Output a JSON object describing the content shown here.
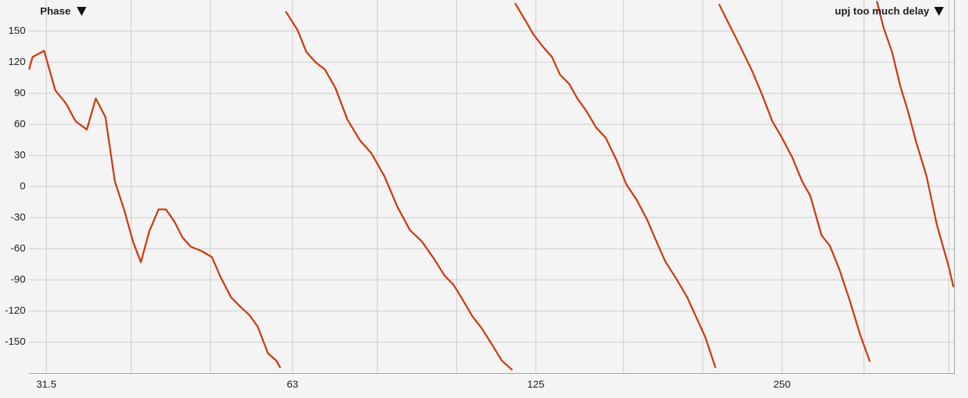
{
  "chart_data": {
    "type": "line",
    "title": "Phase",
    "xscale": "log",
    "grid": true,
    "xlim": [
      30,
      406
    ],
    "ylim": [
      -180,
      180
    ],
    "xticks": [
      31.5,
      63,
      125,
      250
    ],
    "xminor": [
      40,
      50,
      80,
      100,
      160,
      200,
      315,
      400
    ],
    "yticks": [
      150,
      120,
      90,
      60,
      30,
      0,
      -30,
      -60,
      -90,
      -120,
      -150
    ],
    "x": [
      30.0,
      30.3,
      31.3,
      32.3,
      33.3,
      34.2,
      35.3,
      36.2,
      37.2,
      38.2,
      39.2,
      40.2,
      41.1,
      42.1,
      43.2,
      44.1,
      45.2,
      46.2,
      47.3,
      48.7,
      50.2,
      51.5,
      53.0,
      54.4,
      55.8,
      57.1,
      58.8,
      60.2,
      60.9,
      null,
      61.8,
      63.9,
      65.5,
      67.2,
      69.0,
      71.1,
      73.5,
      76.1,
      78.7,
      81.6,
      84.7,
      87.7,
      90.7,
      93.9,
      96.7,
      99.2,
      101.7,
      104.5,
      107.4,
      110.6,
      113.6,
      117.0,
      null,
      117.9,
      121.4,
      124.1,
      127.5,
      130.8,
      133.8,
      137.3,
      140.5,
      144.1,
      148.1,
      152.2,
      157.0,
      161.3,
      166.1,
      171.0,
      175.8,
      179.9,
      186.0,
      191.5,
      195.6,
      201.4,
      207.4,
      null,
      209.4,
      215.6,
      222.0,
      230.0,
      236.3,
      243.3,
      250.0,
      257.4,
      264.6,
      270.8,
      279.4,
      286.0,
      293.9,
      302.6,
      311.6,
      320.2,
      null,
      326.5,
      332.9,
      340.8,
      348.8,
      356.4,
      364.8,
      375.6,
      386.7,
      399.7,
      405.2
    ],
    "series": [
      {
        "name": "upj too much delay",
        "color": "#d2380c",
        "values": [
          113,
          125,
          131,
          93,
          80,
          63,
          55,
          85,
          67,
          5,
          -22,
          -53,
          -73,
          -43,
          -22,
          -22,
          -34,
          -49,
          -58,
          -62,
          -68,
          -88,
          -107,
          -116,
          -124,
          -135,
          -161,
          -168,
          -175,
          null,
          169,
          151,
          130,
          120,
          113,
          95,
          65,
          45,
          32,
          10,
          -20,
          -42,
          -53,
          -70,
          -86,
          -95,
          -109,
          -125,
          -137,
          -153,
          -168,
          -177,
          null,
          177,
          160,
          147,
          135,
          125,
          108,
          99,
          85,
          73,
          57,
          47,
          25,
          2,
          -13,
          -32,
          -54,
          -72,
          -90,
          -107,
          -123,
          -145,
          -175,
          null,
          176,
          156,
          136,
          111,
          89,
          63,
          47,
          28,
          5,
          -9,
          -47,
          -57,
          -80,
          -110,
          -143,
          -169,
          null,
          179,
          153,
          130,
          97,
          73,
          43,
          10,
          -37,
          -77,
          -97
        ]
      }
    ]
  }
}
